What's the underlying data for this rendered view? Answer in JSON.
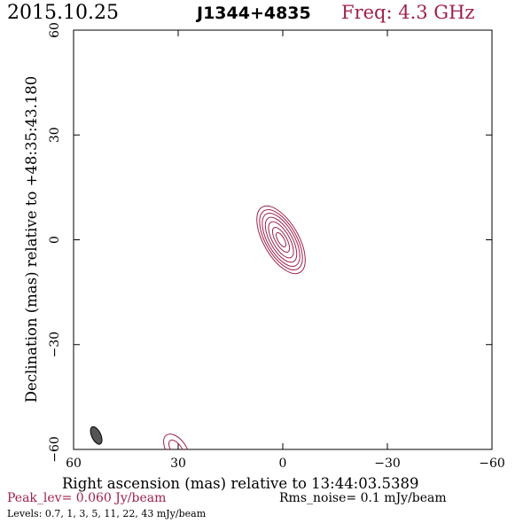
{
  "header": {
    "date": "2015.10.25",
    "source": "J1344+4835",
    "freq": "Freq: 4.3 GHz"
  },
  "footer": {
    "peak": "Peak_lev=  0.060 Jy/beam",
    "rms": "Rms_noise=  0.1 mJy/beam",
    "levels": "Levels: 0.7,   1,   3,   5,   11,   22,   43 mJy/beam"
  },
  "colors": {
    "contour": "#a0204e",
    "beam": "#555555",
    "axis": "#000000"
  },
  "chart_data": {
    "type": "contour",
    "xlabel": "Right ascension (mas) relative to 13:44:03.5389",
    "ylabel": "Declination (mas) relative to +48:35:43.180",
    "xlim": [
      60,
      -60
    ],
    "ylim": [
      -60,
      60
    ],
    "xticks": [
      60,
      30,
      0,
      -30,
      -60
    ],
    "yticks": [
      60,
      30,
      0,
      -30,
      -60
    ],
    "xtick_labels": [
      "60",
      "30",
      "0",
      "−30",
      "−60"
    ],
    "ytick_labels": [
      "60",
      "30",
      "0",
      "−30",
      "−60"
    ],
    "grid": false,
    "contour_levels_mJy": [
      0.7,
      1,
      3,
      5,
      11,
      22,
      43
    ],
    "main_component": {
      "center": [
        0.5,
        0
      ],
      "angle_deg": -30,
      "semi_axes": [
        [
          5.0,
          10.8
        ],
        [
          4.4,
          9.6
        ],
        [
          3.8,
          8.5
        ],
        [
          3.1,
          7.2
        ],
        [
          2.4,
          5.8
        ],
        [
          1.6,
          4.0
        ],
        [
          0.9,
          2.3
        ]
      ]
    },
    "edge_component": {
      "center": [
        30.5,
        -60
      ],
      "angle_deg": -35,
      "semi_axes": [
        [
          2.8,
          5.0
        ],
        [
          1.5,
          3.1
        ]
      ]
    },
    "beam": {
      "center": [
        53.5,
        -56
      ],
      "semi_axes": [
        1.3,
        2.7
      ],
      "angle_deg": -25
    }
  }
}
